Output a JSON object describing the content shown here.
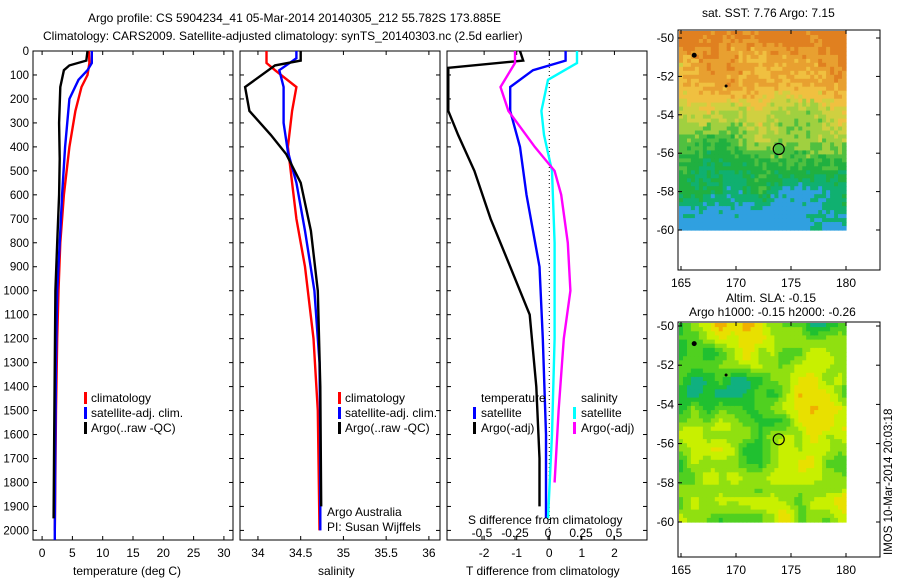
{
  "title": {
    "line1": "Argo profile: CS 5904234_41 05-Mar-2014 20140305_212 55.782S 173.885E",
    "line2": "Climatology: CARS2009. Satellite-adjusted climatology: synTS_20140303.nc (2.5d earlier)"
  },
  "colors": {
    "climatology": "#ff0000",
    "satellite": "#0000ff",
    "argo": "#000000",
    "sal_satellite": "#00ffff",
    "sal_argo": "#ff00ff"
  },
  "chart_data": [
    {
      "type": "line",
      "xlabel": "temperature (deg C)",
      "xlim": [
        -1.5,
        31.5
      ],
      "ylim": [
        0,
        2040
      ],
      "xticks": [
        0,
        5,
        10,
        15,
        20,
        25,
        30
      ],
      "yticks": [
        0,
        100,
        200,
        300,
        400,
        500,
        600,
        700,
        800,
        900,
        1000,
        1100,
        1200,
        1300,
        1400,
        1500,
        1600,
        1700,
        1800,
        1900,
        2000
      ],
      "legend": [
        "climatology",
        "satellite-adj. clim.",
        "Argo(..raw -QC)"
      ],
      "series": [
        {
          "name": "climatology",
          "color": "#ff0000",
          "points": [
            [
              7.7,
              0
            ],
            [
              7.8,
              50
            ],
            [
              7.5,
              100
            ],
            [
              6.5,
              150
            ],
            [
              5.5,
              250
            ],
            [
              4.5,
              400
            ],
            [
              3.6,
              600
            ],
            [
              3.0,
              800
            ],
            [
              2.7,
              1000
            ],
            [
              2.5,
              1200
            ],
            [
              2.3,
              1500
            ],
            [
              2.1,
              2000
            ]
          ]
        },
        {
          "name": "satellite-adj. clim.",
          "color": "#0000ff",
          "points": [
            [
              8.2,
              0
            ],
            [
              8.2,
              50
            ],
            [
              7.5,
              80
            ],
            [
              6.0,
              120
            ],
            [
              4.5,
              200
            ],
            [
              3.8,
              400
            ],
            [
              3.3,
              600
            ],
            [
              2.9,
              800
            ],
            [
              2.5,
              1000
            ],
            [
              2.3,
              1300
            ],
            [
              2.2,
              1600
            ],
            [
              2.1,
              2000
            ],
            [
              2.1,
              2040
            ]
          ]
        },
        {
          "name": "Argo(..raw -QC)",
          "color": "#000000",
          "points": [
            [
              7.5,
              0
            ],
            [
              7.3,
              40
            ],
            [
              4.5,
              60
            ],
            [
              3.6,
              80
            ],
            [
              3.0,
              150
            ],
            [
              2.8,
              300
            ],
            [
              2.9,
              450
            ],
            [
              2.8,
              600
            ],
            [
              2.5,
              800
            ],
            [
              2.2,
              1000
            ],
            [
              2.1,
              1300
            ],
            [
              2.0,
              1600
            ],
            [
              1.9,
              1950
            ]
          ]
        }
      ]
    },
    {
      "type": "line",
      "xlabel": "salinity",
      "xlim": [
        33.79,
        36.13
      ],
      "ylim": [
        0,
        2040
      ],
      "xticks": [
        34,
        34.5,
        35,
        35.5,
        36
      ],
      "legend": [
        "climatology",
        "satellite-adj. clim.",
        "Argo(..raw -QC)"
      ],
      "annotation": [
        "Argo Australia",
        "PI: Susan Wijffels"
      ],
      "series": [
        {
          "name": "climatology",
          "color": "#ff0000",
          "points": [
            [
              34.1,
              0
            ],
            [
              34.1,
              50
            ],
            [
              34.2,
              80
            ],
            [
              34.45,
              150
            ],
            [
              34.4,
              250
            ],
            [
              34.35,
              400
            ],
            [
              34.4,
              550
            ],
            [
              34.45,
              700
            ],
            [
              34.55,
              900
            ],
            [
              34.65,
              1200
            ],
            [
              34.7,
              1500
            ],
            [
              34.72,
              2000
            ]
          ]
        },
        {
          "name": "satellite-adj. clim.",
          "color": "#0000ff",
          "points": [
            [
              34.45,
              0
            ],
            [
              34.45,
              30
            ],
            [
              34.25,
              80
            ],
            [
              34.3,
              150
            ],
            [
              34.3,
              300
            ],
            [
              34.35,
              420
            ],
            [
              34.45,
              550
            ],
            [
              34.55,
              750
            ],
            [
              34.66,
              1000
            ],
            [
              34.72,
              1300
            ],
            [
              34.73,
              1600
            ],
            [
              34.73,
              2000
            ]
          ]
        },
        {
          "name": "Argo(..raw -QC)",
          "color": "#000000",
          "points": [
            [
              34.5,
              0
            ],
            [
              34.5,
              40
            ],
            [
              34.2,
              60
            ],
            [
              33.85,
              150
            ],
            [
              33.9,
              250
            ],
            [
              34.15,
              350
            ],
            [
              34.33,
              430
            ],
            [
              34.5,
              550
            ],
            [
              34.62,
              750
            ],
            [
              34.7,
              1000
            ],
            [
              34.73,
              1400
            ],
            [
              34.74,
              1900
            ]
          ]
        }
      ]
    },
    {
      "type": "line",
      "xlabel": "T difference from climatology",
      "xlabel_top": "S difference from climatology",
      "xlim": [
        -3.14,
        3.0
      ],
      "xlim_s": [
        -0.5,
        0.5
      ],
      "ylim": [
        0,
        2040
      ],
      "xticks": [
        -2,
        -1,
        0,
        1,
        2
      ],
      "xticks_s": [
        -0.5,
        -0.25,
        0,
        0.25,
        0.5
      ],
      "legend_t_title": "temperature",
      "legend_s_title": "salinity",
      "legend": [
        "satellite",
        "Argo(-adj)",
        "satellite",
        "Argo(-adj)"
      ],
      "series": [
        {
          "name": "T satellite",
          "axis": "T",
          "color": "#0000ff",
          "points": [
            [
              0.5,
              0
            ],
            [
              0.5,
              40
            ],
            [
              -0.5,
              80
            ],
            [
              -1.2,
              150
            ],
            [
              -1.2,
              250
            ],
            [
              -0.9,
              400
            ],
            [
              -0.7,
              600
            ],
            [
              -0.3,
              900
            ],
            [
              -0.2,
              1200
            ],
            [
              -0.1,
              1600
            ],
            [
              -0.1,
              1950
            ]
          ]
        },
        {
          "name": "T Argo(-adj)",
          "axis": "T",
          "color": "#000000",
          "points": [
            [
              -0.9,
              0
            ],
            [
              -0.8,
              40
            ],
            [
              -3.1,
              70
            ],
            [
              -3.1,
              250
            ],
            [
              -2.8,
              350
            ],
            [
              -2.3,
              500
            ],
            [
              -1.8,
              700
            ],
            [
              -1.2,
              900
            ],
            [
              -0.6,
              1100
            ],
            [
              -0.4,
              1400
            ],
            [
              -0.3,
              1700
            ],
            [
              -0.3,
              1900
            ]
          ]
        },
        {
          "name": "S satellite",
          "axis": "S",
          "color": "#00ffff",
          "points": [
            [
              0.22,
              0
            ],
            [
              0.22,
              50
            ],
            [
              0.0,
              120
            ],
            [
              -0.05,
              250
            ],
            [
              -0.03,
              350
            ],
            [
              0.03,
              500
            ],
            [
              0.05,
              800
            ],
            [
              0.05,
              1200
            ],
            [
              0.03,
              1600
            ],
            [
              0.0,
              1950
            ]
          ]
        },
        {
          "name": "S Argo(-adj)",
          "axis": "S",
          "color": "#ff00ff",
          "points": [
            [
              -0.25,
              0
            ],
            [
              -0.25,
              50
            ],
            [
              -0.36,
              150
            ],
            [
              -0.3,
              250
            ],
            [
              -0.1,
              400
            ],
            [
              0.05,
              500
            ],
            [
              0.1,
              600
            ],
            [
              0.15,
              800
            ],
            [
              0.17,
              1000
            ],
            [
              0.12,
              1200
            ],
            [
              0.08,
              1500
            ],
            [
              0.05,
              1800
            ]
          ]
        }
      ]
    },
    {
      "type": "heatmap",
      "title": "sat. SST: 7.76 Argo: 7.15",
      "xlim": [
        165,
        183.1
      ],
      "ylim": [
        -62.1,
        -50
      ],
      "xticks": [
        165,
        170,
        175,
        180
      ],
      "yticks": [
        -50,
        -52,
        -54,
        -56,
        -58,
        -60
      ],
      "profile_location": [
        173.885,
        -55.782
      ]
    },
    {
      "type": "heatmap",
      "title": "Altim. SLA: -0.15",
      "subtitle": "Argo h1000: -0.15 h2000: -0.26",
      "xlim": [
        165,
        183.1
      ],
      "ylim": [
        -62.1,
        -50
      ],
      "xticks": [
        165,
        170,
        175,
        180
      ],
      "yticks": [
        -50,
        -52,
        -54,
        -56,
        -58,
        -60
      ],
      "profile_location": [
        173.885,
        -55.782
      ]
    }
  ],
  "footer_stamp": "IMOS 10-Mar-2014 20:03:18"
}
